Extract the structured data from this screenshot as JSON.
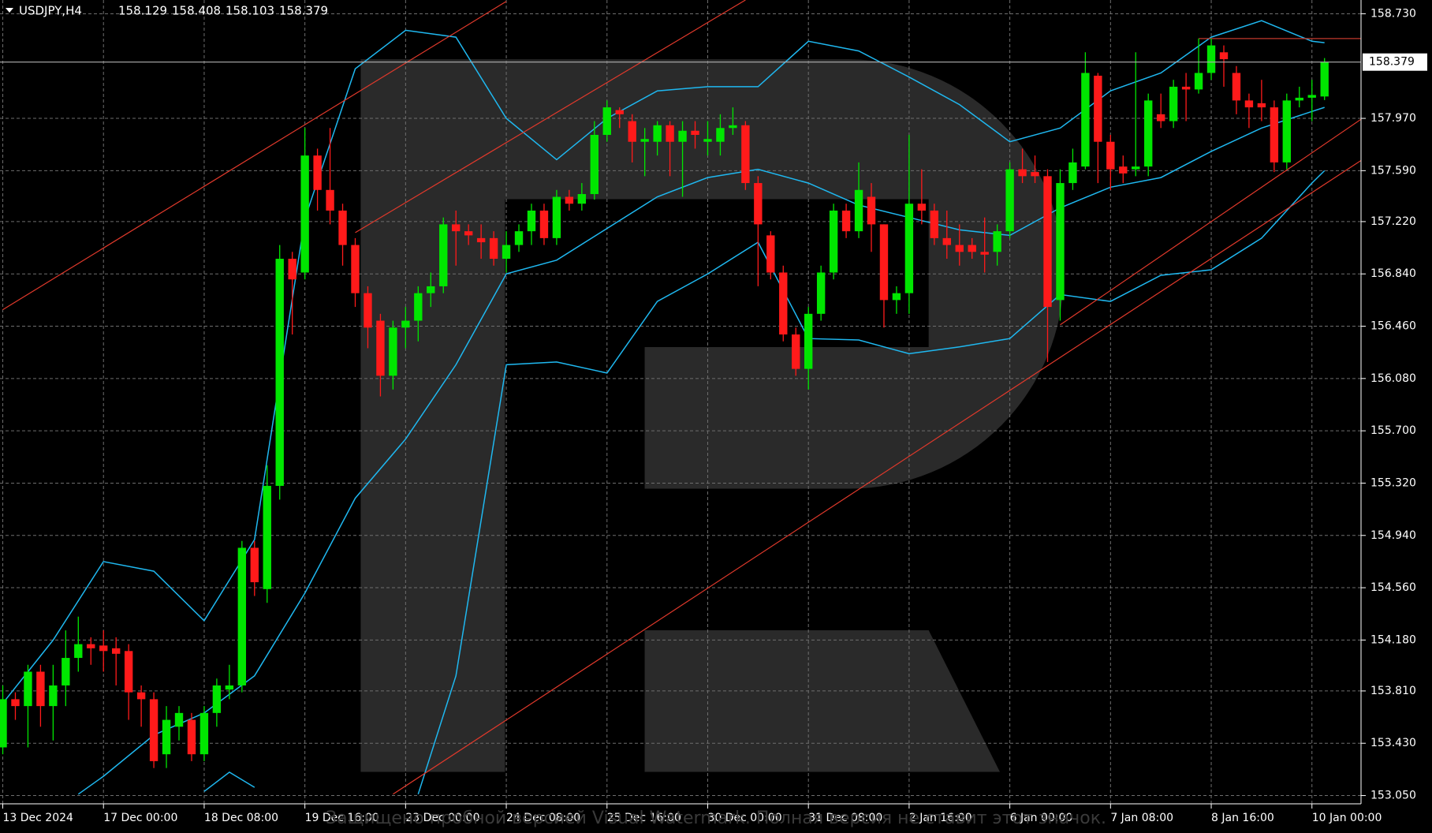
{
  "chart_data": {
    "type": "candlestick",
    "title": "USDJPY,H4",
    "watermark": "Защищено пробной версией Visual Watermark. Полная версия не ставит этот значок.",
    "up_color": "#00e600",
    "down_color": "#ff1a1a",
    "grid": true,
    "xlim": [
      -0.22,
      107.9
    ],
    "ylim": [
      152.99,
      158.83
    ],
    "xticks": [
      {
        "value": 0,
        "label": "13 Dec 2024"
      },
      {
        "value": 8,
        "label": "17 Dec 00:00"
      },
      {
        "value": 16,
        "label": "18 Dec 08:00"
      },
      {
        "value": 24,
        "label": "19 Dec 16:00"
      },
      {
        "value": 32,
        "label": "23 Dec 00:00"
      },
      {
        "value": 40,
        "label": "24 Dec 08:00"
      },
      {
        "value": 48,
        "label": "25 Dec 16:00"
      },
      {
        "value": 56,
        "label": "30 Dec 00:00"
      },
      {
        "value": 64,
        "label": "31 Dec 08:00"
      },
      {
        "value": 72,
        "label": "2 Jan 16:00"
      },
      {
        "value": 80,
        "label": "6 Jan 00:00"
      },
      {
        "value": 88,
        "label": "7 Jan 08:00"
      },
      {
        "value": 96,
        "label": "8 Jan 16:00"
      },
      {
        "value": 104,
        "label": "10 Jan 00:00"
      }
    ],
    "yticks": [
      {
        "value": 153.05,
        "label": "153.050"
      },
      {
        "value": 153.43,
        "label": "153.430"
      },
      {
        "value": 153.81,
        "label": "153.810"
      },
      {
        "value": 154.18,
        "label": "154.180"
      },
      {
        "value": 154.56,
        "label": "154.560"
      },
      {
        "value": 154.94,
        "label": "154.940"
      },
      {
        "value": 155.32,
        "label": "155.320"
      },
      {
        "value": 155.7,
        "label": "155.700"
      },
      {
        "value": 156.08,
        "label": "156.080"
      },
      {
        "value": 156.46,
        "label": "156.460"
      },
      {
        "value": 156.84,
        "label": "156.840"
      },
      {
        "value": 157.22,
        "label": "157.220"
      },
      {
        "value": 157.59,
        "label": "157.590"
      },
      {
        "value": 157.97,
        "label": "157.970"
      },
      {
        "value": 158.73,
        "label": "158.730"
      }
    ],
    "open": [
      153.4,
      153.75,
      153.7,
      153.95,
      153.7,
      153.85,
      154.05,
      154.15,
      154.14,
      154.12,
      154.1,
      153.8,
      153.75,
      153.35,
      153.55,
      153.6,
      153.35,
      153.65,
      153.82,
      153.85,
      154.85,
      154.55,
      155.3,
      156.95,
      156.85,
      157.7,
      157.45,
      157.3,
      157.05,
      156.7,
      156.5,
      156.1,
      156.45,
      156.5,
      156.7,
      156.75,
      157.2,
      157.15,
      157.1,
      157.1,
      156.95,
      157.05,
      157.15,
      157.3,
      157.1,
      157.4,
      157.35,
      157.42,
      157.85,
      158.03,
      157.95,
      157.8,
      157.8,
      157.92,
      157.8,
      157.88,
      157.8,
      157.8,
      157.9,
      157.92,
      157.5,
      157.12,
      156.85,
      156.4,
      156.15,
      156.55,
      156.85,
      157.3,
      157.15,
      157.4,
      157.2,
      156.65,
      156.7,
      157.35,
      157.3,
      157.1,
      157.05,
      157.05,
      157.0,
      157.0,
      157.15,
      157.6,
      157.58,
      157.55,
      156.65,
      157.5,
      157.62,
      158.28,
      157.8,
      157.62,
      157.6,
      157.62,
      158.0,
      157.95,
      158.2,
      158.18,
      158.3,
      158.45,
      158.3,
      158.1,
      158.08,
      158.05,
      157.65,
      158.1,
      158.12,
      158.129
    ],
    "high": [
      153.85,
      153.8,
      154.0,
      154.0,
      154.0,
      154.25,
      154.35,
      154.2,
      154.25,
      154.2,
      154.15,
      153.85,
      153.8,
      153.7,
      153.7,
      153.65,
      153.7,
      153.9,
      154.0,
      154.9,
      154.9,
      155.45,
      157.05,
      157.0,
      157.9,
      157.75,
      157.9,
      157.35,
      157.1,
      156.75,
      156.55,
      156.5,
      156.6,
      156.75,
      156.85,
      157.25,
      157.3,
      157.2,
      157.2,
      157.15,
      157.15,
      157.2,
      157.35,
      157.35,
      157.45,
      157.45,
      157.5,
      157.95,
      158.1,
      158.05,
      158.0,
      157.9,
      157.95,
      157.95,
      157.95,
      157.95,
      157.95,
      158.0,
      158.05,
      157.95,
      157.55,
      157.15,
      156.9,
      156.45,
      156.6,
      156.9,
      157.35,
      157.35,
      157.65,
      157.5,
      157.2,
      156.75,
      157.85,
      157.6,
      157.35,
      157.3,
      157.2,
      157.1,
      157.25,
      157.2,
      157.65,
      157.75,
      157.7,
      157.6,
      157.6,
      157.75,
      158.45,
      158.3,
      157.85,
      157.7,
      158.45,
      158.15,
      158.15,
      158.25,
      158.3,
      158.55,
      158.55,
      158.5,
      158.35,
      158.15,
      158.25,
      158.1,
      158.15,
      158.2,
      158.25,
      158.408
    ],
    "low": [
      153.35,
      153.6,
      153.4,
      153.55,
      153.45,
      153.7,
      153.95,
      154.0,
      153.95,
      153.85,
      153.6,
      153.55,
      153.25,
      153.25,
      153.45,
      153.3,
      153.3,
      153.55,
      153.75,
      153.8,
      154.5,
      154.45,
      155.2,
      156.4,
      156.8,
      157.3,
      157.2,
      156.9,
      156.6,
      156.3,
      155.95,
      156.0,
      156.3,
      156.35,
      156.6,
      156.7,
      156.9,
      157.05,
      156.95,
      156.9,
      156.85,
      157.0,
      157.05,
      157.05,
      157.05,
      157.3,
      157.3,
      157.38,
      157.8,
      157.9,
      157.65,
      157.55,
      157.7,
      157.55,
      157.4,
      157.75,
      157.7,
      157.7,
      157.85,
      157.45,
      156.75,
      156.8,
      156.35,
      156.1,
      156.0,
      156.5,
      156.8,
      157.1,
      157.1,
      157.0,
      156.45,
      156.55,
      156.55,
      157.2,
      157.05,
      156.95,
      156.9,
      156.95,
      156.85,
      156.9,
      157.1,
      157.5,
      157.5,
      156.2,
      156.5,
      157.45,
      157.6,
      157.5,
      157.45,
      157.5,
      157.55,
      157.55,
      157.9,
      157.9,
      157.95,
      158.15,
      158.25,
      158.2,
      158.0,
      157.9,
      157.95,
      157.58,
      157.6,
      158.05,
      157.95,
      158.103
    ],
    "close": [
      153.75,
      153.7,
      153.95,
      153.7,
      153.85,
      154.05,
      154.15,
      154.12,
      154.1,
      154.08,
      153.8,
      153.75,
      153.3,
      153.6,
      153.65,
      153.35,
      153.65,
      153.85,
      153.85,
      154.85,
      154.6,
      155.3,
      156.95,
      156.8,
      157.7,
      157.45,
      157.3,
      157.05,
      156.7,
      156.45,
      156.1,
      156.45,
      156.5,
      156.7,
      156.75,
      157.2,
      157.15,
      157.12,
      157.07,
      156.95,
      157.05,
      157.15,
      157.3,
      157.1,
      157.4,
      157.35,
      157.42,
      157.85,
      158.05,
      158.0,
      157.8,
      157.82,
      157.92,
      157.8,
      157.88,
      157.85,
      157.82,
      157.9,
      157.92,
      157.5,
      157.2,
      156.85,
      156.4,
      156.15,
      156.55,
      156.85,
      157.3,
      157.15,
      157.45,
      157.2,
      156.65,
      156.7,
      157.35,
      157.3,
      157.1,
      157.05,
      157.0,
      157.0,
      156.98,
      157.15,
      157.6,
      157.55,
      157.55,
      156.6,
      157.5,
      157.65,
      158.3,
      157.8,
      157.6,
      157.57,
      157.62,
      158.1,
      157.95,
      158.2,
      158.18,
      158.3,
      158.5,
      158.4,
      158.1,
      158.05,
      158.05,
      157.65,
      158.1,
      158.12,
      158.14,
      158.379
    ],
    "series": [
      {
        "color": "#1fb8f0",
        "x": [
          0,
          4,
          8,
          12,
          16,
          20,
          24,
          28,
          32,
          36,
          40,
          44,
          48,
          52,
          56,
          60,
          64,
          68,
          72,
          76,
          80,
          84,
          88,
          92,
          96,
          100,
          104,
          105
        ],
        "values": [
          153.72,
          154.18,
          154.75,
          154.68,
          154.32,
          154.91,
          157.24,
          158.33,
          158.61,
          158.56,
          157.97,
          157.67,
          157.97,
          158.17,
          158.2,
          158.2,
          158.53,
          158.46,
          158.27,
          158.07,
          157.8,
          157.9,
          158.17,
          158.3,
          158.56,
          158.68,
          158.53,
          158.52
        ]
      },
      {
        "color": "#1fb8f0",
        "x": [
          6,
          8,
          12,
          16,
          20,
          24,
          28,
          32,
          36,
          40,
          44,
          48,
          52,
          56,
          60,
          64,
          68,
          72,
          76,
          80,
          84,
          88,
          92,
          96,
          100,
          104,
          105
        ],
        "values": [
          153.06,
          153.19,
          153.49,
          153.65,
          153.92,
          154.52,
          155.21,
          155.64,
          156.18,
          156.84,
          156.94,
          157.17,
          157.4,
          157.54,
          157.6,
          157.5,
          157.34,
          157.25,
          157.16,
          157.12,
          157.32,
          157.47,
          157.54,
          157.73,
          157.9,
          158.02,
          158.05
        ]
      },
      {
        "color": "#1fb8f0",
        "x": [
          16,
          18,
          20,
          27,
          33,
          36,
          40,
          44,
          48,
          52,
          56,
          60,
          64,
          68,
          72,
          76,
          80,
          84,
          88,
          92,
          96,
          100,
          104,
          105
        ],
        "values": [
          153.08,
          153.22,
          153.11,
          null,
          153.06,
          153.92,
          156.18,
          156.2,
          156.12,
          156.64,
          156.84,
          157.07,
          156.37,
          156.36,
          156.26,
          156.31,
          156.37,
          156.69,
          156.64,
          156.83,
          156.87,
          157.1,
          157.5,
          157.59
        ]
      }
    ],
    "trendlines": [
      {
        "color": "#e0392b",
        "x": [
          0,
          40
        ],
        "values": [
          156.58,
          158.82
        ]
      },
      {
        "color": "#e0392b",
        "x": [
          28,
          59
        ],
        "values": [
          157.14,
          158.83
        ]
      },
      {
        "color": "#e0392b",
        "x": [
          31,
          108
        ],
        "values": [
          153.06,
          157.67
        ]
      },
      {
        "color": "#e0392b",
        "x": [
          84,
          108
        ],
        "values": [
          156.47,
          157.97
        ]
      },
      {
        "color": "#c0392b",
        "x": [
          95,
          108
        ],
        "values": [
          158.55,
          158.55
        ]
      }
    ]
  }
}
